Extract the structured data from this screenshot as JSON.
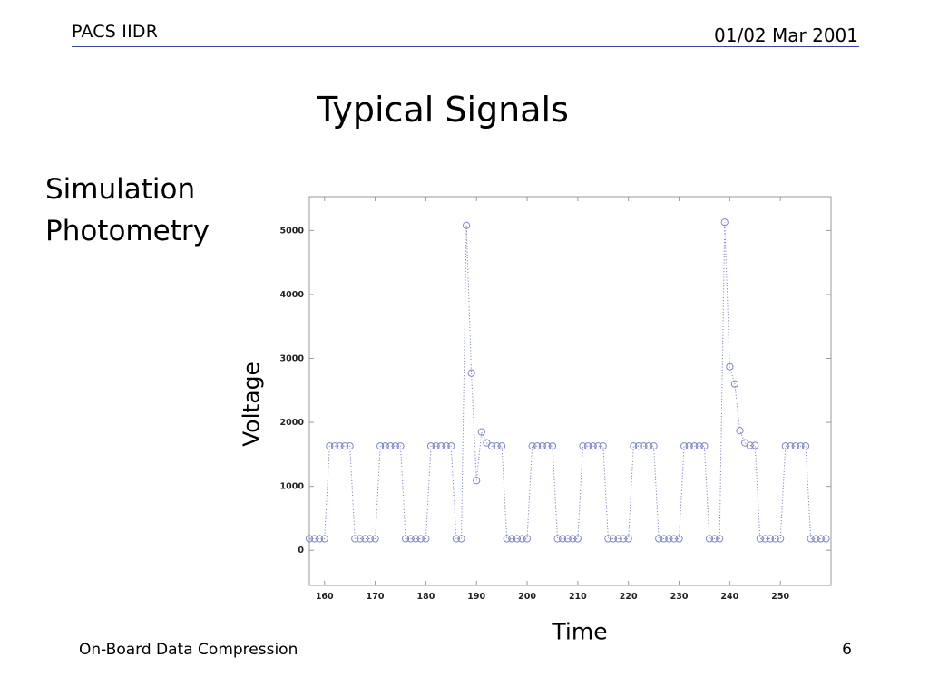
{
  "header": {
    "left": "PACS IIDR",
    "right": "01/02 Mar 2001",
    "rule_color": "#3b3fa8"
  },
  "slide": {
    "title": "Typical Signals",
    "bullets": [
      "Simulation",
      "Photometry"
    ]
  },
  "footer": {
    "left": "On-Board Data Compression",
    "page_number": "6"
  },
  "chart_data": {
    "type": "scatter",
    "title": "",
    "xlabel": "Time",
    "ylabel": "Voltage",
    "xlim": [
      157,
      260
    ],
    "ylim": [
      -550,
      5530
    ],
    "xticks": [
      160,
      170,
      180,
      190,
      200,
      210,
      220,
      230,
      240,
      250
    ],
    "yticks": [
      0,
      1000,
      2000,
      3000,
      4000,
      5000
    ],
    "grid": false,
    "marker": "open-circle",
    "connect_with": "dotted-line",
    "color": "#7f86c9",
    "legend": null,
    "x": [
      157,
      158,
      159,
      160,
      161,
      162,
      163,
      164,
      165,
      166,
      167,
      168,
      169,
      170,
      171,
      172,
      173,
      174,
      175,
      176,
      177,
      178,
      179,
      180,
      181,
      182,
      183,
      184,
      185,
      186,
      187,
      188,
      189,
      190,
      191,
      192,
      193,
      194,
      195,
      196,
      197,
      198,
      199,
      200,
      201,
      202,
      203,
      204,
      205,
      206,
      207,
      208,
      209,
      210,
      211,
      212,
      213,
      214,
      215,
      216,
      217,
      218,
      219,
      220,
      221,
      222,
      223,
      224,
      225,
      226,
      227,
      228,
      229,
      230,
      231,
      232,
      233,
      234,
      235,
      236,
      237,
      238,
      239,
      240,
      241,
      242,
      243,
      244,
      245,
      246,
      247,
      248,
      249,
      250,
      251,
      252,
      253,
      254,
      255,
      256,
      257,
      258,
      259
    ],
    "y": [
      180,
      180,
      180,
      180,
      1630,
      1630,
      1630,
      1630,
      1630,
      180,
      180,
      180,
      180,
      180,
      1630,
      1630,
      1630,
      1630,
      1630,
      180,
      180,
      180,
      180,
      180,
      1630,
      1630,
      1630,
      1630,
      1630,
      180,
      180,
      5080,
      2770,
      1090,
      1850,
      1680,
      1630,
      1630,
      1630,
      180,
      180,
      180,
      180,
      180,
      1630,
      1630,
      1630,
      1630,
      1630,
      180,
      180,
      180,
      180,
      180,
      1630,
      1630,
      1630,
      1630,
      1630,
      180,
      180,
      180,
      180,
      180,
      1630,
      1630,
      1630,
      1630,
      1630,
      180,
      180,
      180,
      180,
      180,
      1630,
      1630,
      1630,
      1630,
      1630,
      180,
      180,
      180,
      5130,
      2870,
      2600,
      1870,
      1680,
      1640,
      1640,
      180,
      180,
      180,
      180,
      180,
      1630,
      1630,
      1630,
      1630,
      1630,
      180,
      180,
      180,
      180
    ]
  }
}
